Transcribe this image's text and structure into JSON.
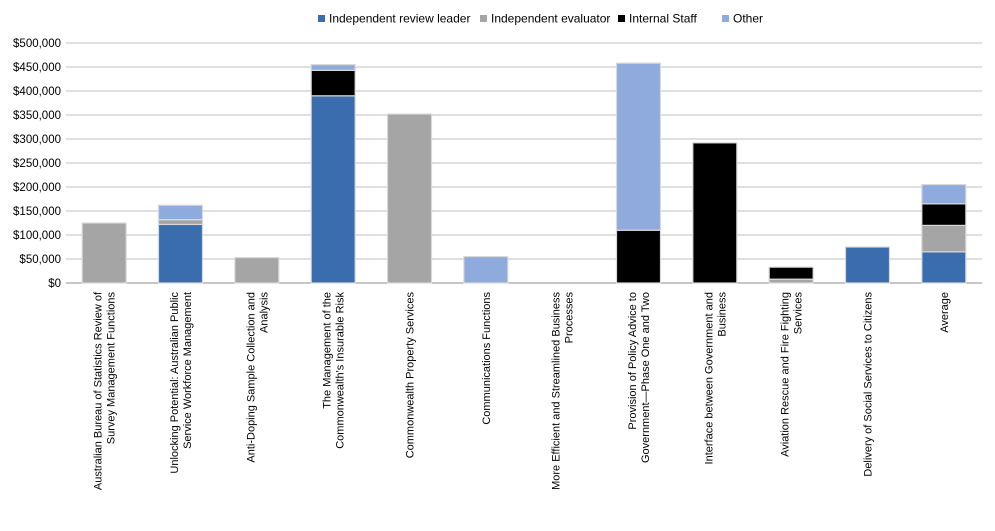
{
  "chart_data": {
    "type": "bar",
    "stacked": true,
    "title": "",
    "xlabel": "",
    "ylabel": "",
    "ylim": [
      0,
      500000
    ],
    "ytick_labels": [
      "$0",
      "$50,000",
      "$100,000",
      "$150,000",
      "$200,000",
      "$250,000",
      "$300,000",
      "$350,000",
      "$400,000",
      "$450,000",
      "$500,000"
    ],
    "grid": "horizontal",
    "legend_position": "top",
    "categories": [
      [
        "Australian Bureau of Statistics Review of",
        "Survey Management Functions"
      ],
      [
        "Unlocking Potential: Australian Public",
        "Service Workforce Management"
      ],
      [
        "Anti-Doping Sample Collection and",
        "Analysis"
      ],
      [
        "The Management of the",
        "Commonwealth's Insurable Risk"
      ],
      [
        "Commonwealth Property Services"
      ],
      [
        "Communications Functions"
      ],
      [
        "More Efficient and Streamlined Business",
        "Processes"
      ],
      [
        "Provision of Policy Advice to",
        "Government—Phase One and Two"
      ],
      [
        "Interface between Government and",
        "Business"
      ],
      [
        "Aviation Rescue and Fire Fighting",
        "Services"
      ],
      [
        "Delivery of Social Services to Citizens"
      ],
      [
        "Average"
      ]
    ],
    "series": [
      {
        "name": "Independent review leader",
        "color": "#3A6DAE",
        "values": [
          0,
          122000,
          0,
          390000,
          0,
          0,
          0,
          0,
          0,
          0,
          75000,
          65000
        ]
      },
      {
        "name": "Independent evaluator",
        "color": "#A5A5A5",
        "values": [
          125000,
          10000,
          53000,
          0,
          352000,
          0,
          0,
          0,
          0,
          8000,
          0,
          55000
        ]
      },
      {
        "name": "Internal Staff",
        "color": "#000000",
        "values": [
          0,
          0,
          0,
          53000,
          0,
          0,
          0,
          110000,
          292000,
          25000,
          0,
          45000
        ]
      },
      {
        "name": "Other",
        "color": "#8FAADC",
        "values": [
          0,
          30000,
          0,
          12000,
          0,
          55000,
          0,
          348000,
          0,
          0,
          0,
          40000
        ]
      }
    ]
  }
}
